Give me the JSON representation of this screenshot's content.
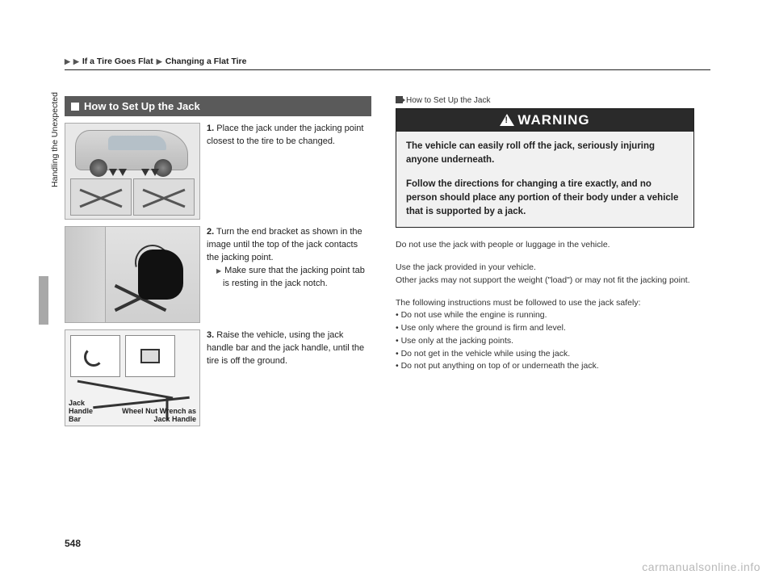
{
  "breadcrumb": {
    "seg1": "If a Tire Goes Flat",
    "seg2": "Changing a Flat Tire"
  },
  "section": {
    "title": "How to Set Up the Jack"
  },
  "steps": {
    "s1": {
      "num": "1.",
      "text": "Place the jack under the jacking point closest to the tire to be changed."
    },
    "s2": {
      "num": "2.",
      "text": "Turn the end bracket as shown in the image until the top of the jack contacts the jacking point.",
      "sub": "Make sure that the jacking point tab is resting in the jack notch."
    },
    "s3": {
      "num": "3.",
      "text": "Raise the vehicle, using the jack handle bar and the jack handle, until the tire is off the ground."
    }
  },
  "img3_labels": {
    "handle_bar": "Jack Handle Bar",
    "wrench": "Wheel Nut Wrench as Jack Handle"
  },
  "ref": {
    "title": "How to Set Up the Jack"
  },
  "warning": {
    "head": "WARNING",
    "p1": "The vehicle can easily roll off the jack, seriously injuring anyone underneath.",
    "p2": "Follow the directions for changing a tire exactly, and no person should place any portion of their body under a vehicle that is supported by a jack."
  },
  "notes": {
    "n1": "Do not use the jack with people or luggage in the vehicle.",
    "n2a": "Use the jack provided in your vehicle.",
    "n2b": "Other jacks may not support the weight (\"load\") or may not fit the jacking point.",
    "n3_intro": "The following instructions must be followed to use the jack safely:",
    "bullets": {
      "b1": "Do not use while the engine is running.",
      "b2": "Use only where the ground is firm and level.",
      "b3": "Use only at the jacking points.",
      "b4": "Do not get in the vehicle while using the jack.",
      "b5": "Do not put anything on top of or underneath the jack."
    }
  },
  "side_label": "Handling the Unexpected",
  "page_number": "548",
  "watermark": "carmanualsonline.info",
  "colors": {
    "section_bg": "#5a5a5a",
    "warning_head_bg": "#2a2a2a",
    "side_tab": "#a8a8a8",
    "watermark": "#b8b8b8"
  }
}
